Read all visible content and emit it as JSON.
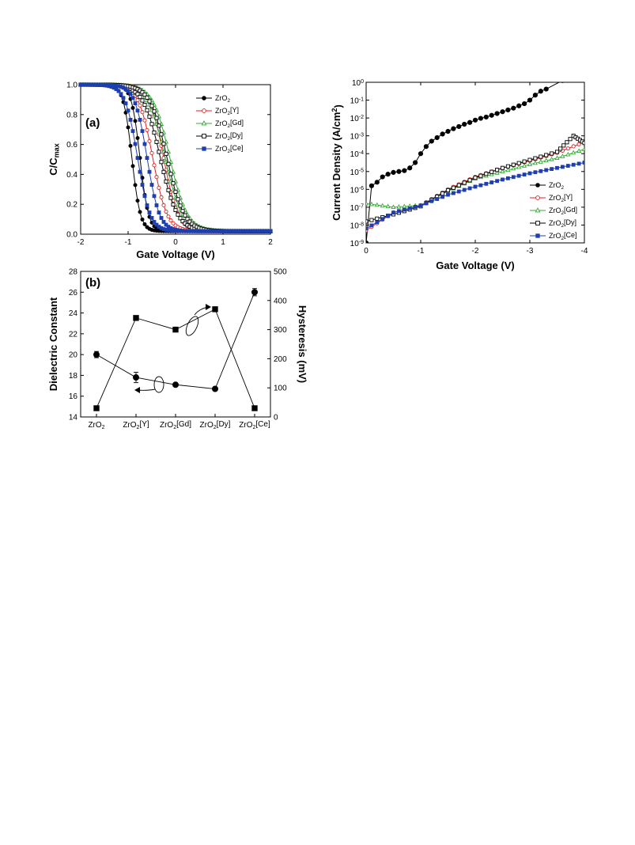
{
  "colors": {
    "ZrO2": "#000000",
    "ZrO2[Y]": "#e02020",
    "ZrO2[Gd]": "#33aa33",
    "ZrO2[Dy]": "#000000",
    "ZrO2[Ce]": "#1f3fae"
  },
  "chart_data": [
    {
      "id": "a",
      "type": "line",
      "panel_label": "(a)",
      "xlabel": "Gate Voltage (V)",
      "ylabel": "C/C",
      "ylabel_sub": "max",
      "xlim": [
        -2,
        2
      ],
      "ylim": [
        0,
        1.0
      ],
      "xticks": [
        -2,
        -1,
        0,
        1,
        2
      ],
      "xtick_labels": [
        "-2",
        "-1",
        "0",
        "1",
        "2"
      ],
      "yticks": [
        0,
        0.2,
        0.4,
        0.6,
        0.8,
        1.0
      ],
      "ytick_labels": [
        "0.0",
        "0.2",
        "0.4",
        "0.6",
        "0.8",
        "1.0"
      ],
      "legend_position": "top-right",
      "series": [
        {
          "name": "ZrO",
          "sub": "2",
          "suffix": "",
          "key": "ZrO2",
          "marker": "filled-circle",
          "branches": [
            {
              "v0": -0.92,
              "w": 0.09
            },
            {
              "v0": -0.75,
              "w": 0.09
            }
          ]
        },
        {
          "name": "ZrO",
          "sub": "2",
          "suffix": "[Y]",
          "key": "ZrO2[Y]",
          "marker": "open-circle",
          "branches": [
            {
              "v0": -0.48,
              "w": 0.15
            },
            {
              "v0": -0.25,
              "w": 0.15
            }
          ]
        },
        {
          "name": "ZrO",
          "sub": "2",
          "suffix": "[Gd]",
          "key": "ZrO2[Gd]",
          "marker": "open-triangle",
          "branches": [
            {
              "v0": -0.22,
              "w": 0.18
            },
            {
              "v0": -0.12,
              "w": 0.18
            }
          ]
        },
        {
          "name": "ZrO",
          "sub": "2",
          "suffix": "[Dy]",
          "key": "ZrO2[Dy]",
          "marker": "open-square",
          "branches": [
            {
              "v0": -0.32,
              "w": 0.18
            },
            {
              "v0": -0.18,
              "w": 0.18
            }
          ]
        },
        {
          "name": "ZrO",
          "sub": "2",
          "suffix": "[Ce]",
          "key": "ZrO2[Ce]",
          "marker": "filled-square",
          "branches": [
            {
              "v0": -0.8,
              "w": 0.13
            },
            {
              "v0": -0.6,
              "w": 0.13
            }
          ]
        }
      ]
    },
    {
      "id": "b",
      "type": "line",
      "panel_label": "(b)",
      "xlabel": "",
      "ylabel": "Dielectric Constant",
      "y2label": "Hysteresis (mV)",
      "categories": [
        {
          "base": "ZrO",
          "sub": "2",
          "suffix": ""
        },
        {
          "base": "ZrO",
          "sub": "2",
          "suffix": "[Y]"
        },
        {
          "base": "ZrO",
          "sub": "2",
          "suffix": "[Gd]"
        },
        {
          "base": "ZrO",
          "sub": "2",
          "suffix": "[Dy]"
        },
        {
          "base": "ZrO",
          "sub": "2",
          "suffix": "[Ce]"
        }
      ],
      "ylim": [
        14,
        28
      ],
      "yticks": [
        14,
        16,
        18,
        20,
        22,
        24,
        26,
        28
      ],
      "ytick_labels": [
        "14",
        "16",
        "18",
        "20",
        "22",
        "24",
        "26",
        "28"
      ],
      "y2lim": [
        0,
        500
      ],
      "y2ticks": [
        0,
        100,
        200,
        300,
        400,
        500
      ],
      "y2tick_labels": [
        "0",
        "100",
        "200",
        "300",
        "400",
        "500"
      ],
      "series": [
        {
          "name": "Dielectric Constant",
          "axis": "left",
          "marker": "filled-circle",
          "values": [
            20.0,
            17.8,
            17.1,
            16.7,
            26.0
          ],
          "errors": [
            0.3,
            0.5,
            0.15,
            0.15,
            0.35
          ]
        },
        {
          "name": "Hysteresis",
          "axis": "right",
          "marker": "filled-square",
          "values": [
            30,
            340,
            300,
            370,
            30
          ]
        }
      ]
    },
    {
      "id": "c",
      "type": "line",
      "panel_label": "",
      "xlabel": "Gate Voltage (V)",
      "ylabel": "Current Density (A/cm",
      "ylabel_sup": "2",
      "ylabel_end": ")",
      "xlim": [
        0,
        -4
      ],
      "ylim_log10": [
        -9,
        0
      ],
      "yscale": "log",
      "xticks": [
        0,
        -1,
        -2,
        -3,
        -4
      ],
      "xtick_labels": [
        "0",
        "-1",
        "-2",
        "-3",
        "-4"
      ],
      "ytick_exponents": [
        "0",
        "-1",
        "-2",
        "-3",
        "-4",
        "-5",
        "-6",
        "-7",
        "-8",
        "-9"
      ],
      "ytick_base": "10",
      "legend_position": "bottom-right",
      "series": [
        {
          "name": "ZrO",
          "sub": "2",
          "suffix": "",
          "key": "ZrO2",
          "marker": "filled-circle",
          "x": [
            0.0,
            -0.1,
            -0.2,
            -0.3,
            -0.4,
            -0.5,
            -0.6,
            -0.7,
            -0.8,
            -0.9,
            -1.0,
            -1.1,
            -1.2,
            -1.3,
            -1.4,
            -1.5,
            -1.6,
            -1.7,
            -1.8,
            -1.9,
            -2.0,
            -2.1,
            -2.2,
            -2.3,
            -2.4,
            -2.5,
            -2.6,
            -2.7,
            -2.8,
            -2.9,
            -3.0,
            -3.1,
            -3.2,
            -3.3,
            -3.6
          ],
          "y": [
            -9,
            -5.8,
            -5.6,
            -5.3,
            -5.15,
            -5.05,
            -5.0,
            -4.95,
            -4.8,
            -4.5,
            -4.0,
            -3.6,
            -3.3,
            -3.1,
            -2.9,
            -2.75,
            -2.6,
            -2.48,
            -2.35,
            -2.25,
            -2.12,
            -2.02,
            -1.95,
            -1.85,
            -1.75,
            -1.65,
            -1.55,
            -1.45,
            -1.32,
            -1.2,
            -1.0,
            -0.72,
            -0.5,
            -0.38,
            0.1
          ]
        },
        {
          "name": "ZrO",
          "sub": "2",
          "suffix": "[Y]",
          "key": "ZrO2[Y]",
          "marker": "open-circle",
          "x": [
            0.0,
            -0.5,
            -1.0,
            -1.5,
            -2.0,
            -2.5,
            -3.0,
            -3.5,
            -4.0
          ],
          "y": [
            -8.3,
            -7.3,
            -6.9,
            -6.0,
            -5.3,
            -4.8,
            -4.4,
            -3.95,
            -3.35
          ]
        },
        {
          "name": "ZrO",
          "sub": "2",
          "suffix": "[Gd]",
          "key": "ZrO2[Gd]",
          "marker": "open-triangle",
          "x": [
            0.0,
            -0.5,
            -1.0,
            -1.5,
            -2.0,
            -2.5,
            -3.0,
            -3.5,
            -4.0
          ],
          "y": [
            -6.8,
            -7.0,
            -6.9,
            -6.1,
            -5.4,
            -5.0,
            -4.6,
            -4.25,
            -3.75
          ]
        },
        {
          "name": "ZrO",
          "sub": "2",
          "suffix": "[Dy]",
          "key": "ZrO2[Dy]",
          "marker": "open-square",
          "x": [
            0.0,
            -0.5,
            -1.0,
            -1.5,
            -2.0,
            -2.5,
            -3.0,
            -3.5,
            -3.8,
            -4.0
          ],
          "y": [
            -7.8,
            -7.4,
            -6.95,
            -6.05,
            -5.35,
            -4.8,
            -4.35,
            -3.9,
            -3.0,
            -3.4
          ]
        },
        {
          "name": "ZrO",
          "sub": "2",
          "suffix": "[Ce]",
          "key": "ZrO2[Ce]",
          "marker": "filled-square",
          "x": [
            0.0,
            -0.5,
            -1.0,
            -1.5,
            -2.0,
            -2.5,
            -3.0,
            -3.5,
            -4.0
          ],
          "y": [
            -8.2,
            -7.3,
            -6.9,
            -6.3,
            -5.85,
            -5.45,
            -5.1,
            -4.8,
            -4.5
          ]
        }
      ]
    }
  ]
}
